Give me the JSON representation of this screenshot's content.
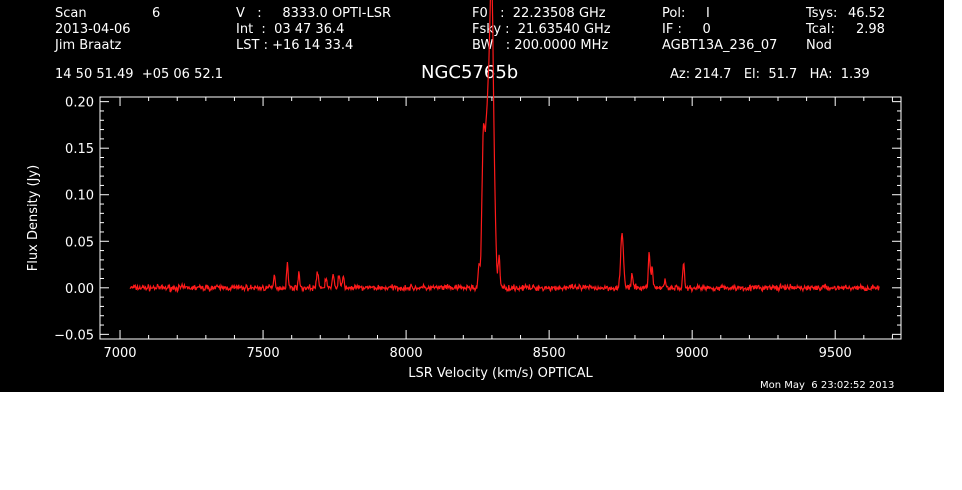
{
  "header": {
    "scan_label": "Scan",
    "scan_value": "6",
    "date": "2013-04-06",
    "observer": "Jim Braatz",
    "velocity": "V   :     8333.0 OPTI-LSR",
    "int_time": "Int  :  03 47 36.4",
    "lst": "LST : +16 14 33.4",
    "f0": "F0   :  22.23508 GHz",
    "fsky": "Fsky :  21.63540 GHz",
    "bw": "BW   : 200.0000 MHz",
    "pol": "Pol:     I",
    "if": "IF :     0",
    "project": "AGBT13A_236_07",
    "tsys_label": "Tsys:",
    "tsys_value": "46.52",
    "tcal_label": "Tcal:",
    "tcal_value": "2.98",
    "mode": "Nod",
    "coords": "14 50 51.49  +05 06 52.1",
    "source": "NGC5765b",
    "pointing": "Az: 214.7   El:  51.7   HA:  1.39"
  },
  "footer": {
    "timestamp": "Mon May  6 23:02:52 2013"
  },
  "colors": {
    "background": "#000000",
    "foreground": "#ffffff",
    "trace": "#ff1a1a"
  },
  "chart_data": {
    "type": "line",
    "xlabel": "LSR Velocity (km/s) OPTICAL",
    "ylabel": "Flux Density (Jy)",
    "xlim": [
      6930,
      9730
    ],
    "ylim": [
      -0.055,
      0.205
    ],
    "xticks": [
      "7000",
      "7500",
      "8000",
      "8500",
      "9000",
      "9500"
    ],
    "yticks": [
      "−0.05",
      "0.00",
      "0.05",
      "0.10",
      "0.15",
      "0.20"
    ],
    "x_range": [
      7035,
      9655
    ],
    "baseline": 0.0,
    "noise_rms": 0.002,
    "peaks": [
      {
        "v": 7540,
        "flux": 0.012
      },
      {
        "v": 7585,
        "flux": 0.025
      },
      {
        "v": 7625,
        "flux": 0.014
      },
      {
        "v": 7690,
        "flux": 0.018
      },
      {
        "v": 7720,
        "flux": 0.011
      },
      {
        "v": 7745,
        "flux": 0.013
      },
      {
        "v": 7765,
        "flux": 0.014
      },
      {
        "v": 7780,
        "flux": 0.012
      },
      {
        "v": 8255,
        "flux": 0.025
      },
      {
        "v": 8270,
        "flux": 0.155
      },
      {
        "v": 8280,
        "flux": 0.118
      },
      {
        "v": 8288,
        "flux": 0.14
      },
      {
        "v": 8296,
        "flux": 0.195
      },
      {
        "v": 8302,
        "flux": 0.185
      },
      {
        "v": 8310,
        "flux": 0.06
      },
      {
        "v": 8325,
        "flux": 0.035
      },
      {
        "v": 8755,
        "flux": 0.057
      },
      {
        "v": 8790,
        "flux": 0.014
      },
      {
        "v": 8850,
        "flux": 0.04
      },
      {
        "v": 8860,
        "flux": 0.022
      },
      {
        "v": 8905,
        "flux": 0.009
      },
      {
        "v": 8970,
        "flux": 0.025
      }
    ]
  }
}
